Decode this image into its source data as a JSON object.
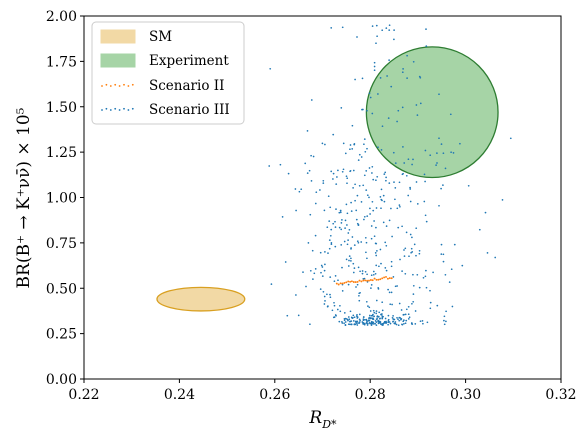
{
  "chart_data": {
    "type": "scatter",
    "xlabel_main": "R",
    "xlabel_sub": "D*",
    "ylabel": "BR(B⁺ → K⁺νν̄) × 10⁵",
    "xlim": [
      0.22,
      0.32
    ],
    "ylim": [
      0.0,
      2.0
    ],
    "xticks": [
      "0.22",
      "0.24",
      "0.26",
      "0.28",
      "0.30",
      "0.32"
    ],
    "yticks": [
      "0.00",
      "0.25",
      "0.50",
      "0.75",
      "1.00",
      "1.25",
      "1.50",
      "1.75",
      "2.00"
    ],
    "grid": false,
    "legend_position": "top-left",
    "legend": [
      {
        "label": "SM",
        "kind": "ellipse"
      },
      {
        "label": "Experiment",
        "kind": "ellipse"
      },
      {
        "label": "Scenario II",
        "kind": "points"
      },
      {
        "label": "Scenario III",
        "kind": "points"
      }
    ],
    "regions": [
      {
        "name": "SM",
        "center": [
          0.2445,
          0.44
        ],
        "radius": [
          0.0092,
          0.065
        ],
        "fill": "#f2d9a5",
        "stroke": "#d9a021"
      },
      {
        "name": "Experiment",
        "center": [
          0.293,
          1.47
        ],
        "radius": [
          0.0138,
          0.36
        ],
        "fill": "#a6d4a6",
        "stroke": "#2e7d32"
      }
    ],
    "series": [
      {
        "name": "Scenario II",
        "color": "#ff7f0e",
        "x_range": [
          0.273,
          0.2845
        ],
        "y_range": [
          0.525,
          0.56
        ],
        "count": 30
      },
      {
        "name": "Scenario III",
        "color": "#1f77b4",
        "count": 620
      }
    ]
  },
  "colors": {
    "scenario2": "#ff7f0e",
    "scenario3": "#1f77b4",
    "sm_fill": "#f2d9a5",
    "sm_stroke": "#d9a021",
    "exp_fill": "#a6d4a6",
    "exp_stroke": "#2e7d32"
  }
}
